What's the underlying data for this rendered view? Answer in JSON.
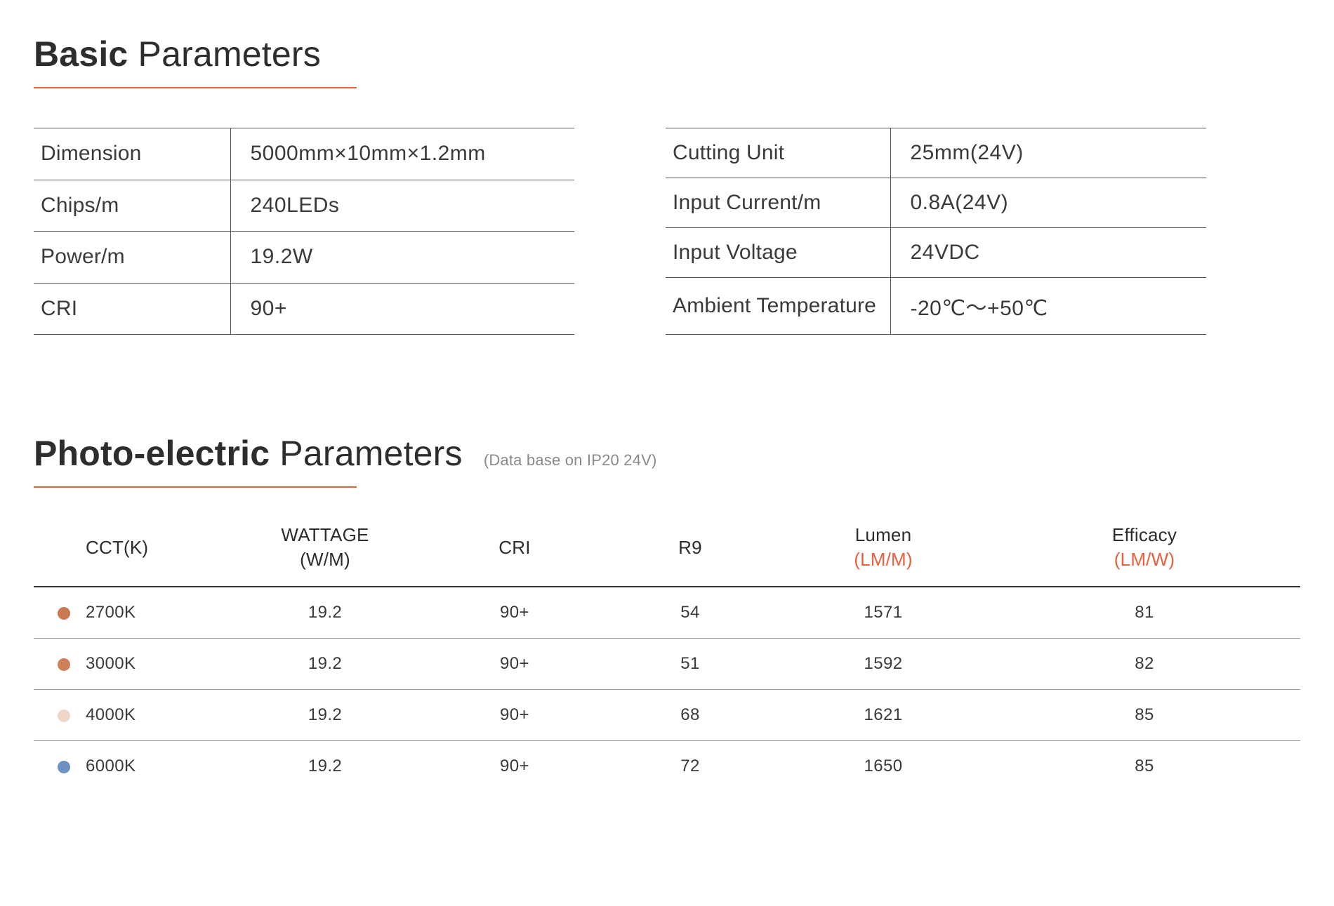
{
  "colors": {
    "accent": "#e8603c",
    "text_dark": "#2d2d2d",
    "text_body": "#3a3a3a",
    "rule": "#555555",
    "rule_light": "#9a9a9a",
    "muted": "#8a8a8a",
    "background": "#ffffff"
  },
  "section1": {
    "title_bold": "Basic",
    "title_rest": " Parameters",
    "left_table": {
      "rows": [
        {
          "label": "Dimension",
          "value": "5000mm×10mm×1.2mm"
        },
        {
          "label": "Chips/m",
          "value": "240LEDs"
        },
        {
          "label": "Power/m",
          "value": "19.2W"
        },
        {
          "label": "CRI",
          "value": "90+"
        }
      ]
    },
    "right_table": {
      "rows": [
        {
          "label": "Cutting Unit",
          "value": "25mm(24V)"
        },
        {
          "label": "Input Current/m",
          "value": "0.8A(24V)"
        },
        {
          "label": "Input Voltage",
          "value": "24VDC"
        },
        {
          "label": "Ambient Temperature",
          "value": "-20℃～+50℃"
        }
      ]
    }
  },
  "section2": {
    "title_bold": "Photo-electric",
    "title_rest": " Parameters",
    "note": "(Data base on IP20 24V)",
    "table": {
      "columns": [
        {
          "key": "cct",
          "label": "CCT(K)",
          "sub": ""
        },
        {
          "key": "wattage",
          "label": "WATTAGE",
          "sub": "(W/M)"
        },
        {
          "key": "cri",
          "label": "CRI",
          "sub": ""
        },
        {
          "key": "r9",
          "label": "R9",
          "sub": ""
        },
        {
          "key": "lumen",
          "label": "Lumen",
          "sub": "(LM/M)",
          "sub_accent": true
        },
        {
          "key": "efficacy",
          "label": "Efficacy",
          "sub": "(LM/W)",
          "sub_accent": true
        }
      ],
      "rows": [
        {
          "swatch": "#c97a52",
          "cct": "2700K",
          "wattage": "19.2",
          "cri": "90+",
          "r9": "54",
          "lumen": "1571",
          "efficacy": "81"
        },
        {
          "swatch": "#cf7f5a",
          "cct": "3000K",
          "wattage": "19.2",
          "cri": "90+",
          "r9": "51",
          "lumen": "1592",
          "efficacy": "82"
        },
        {
          "swatch": "#f0d6c6",
          "cct": "4000K",
          "wattage": "19.2",
          "cri": "90+",
          "r9": "68",
          "lumen": "1621",
          "efficacy": "85"
        },
        {
          "swatch": "#6e91c4",
          "cct": "6000K",
          "wattage": "19.2",
          "cri": "90+",
          "r9": "72",
          "lumen": "1650",
          "efficacy": "85"
        }
      ]
    }
  }
}
